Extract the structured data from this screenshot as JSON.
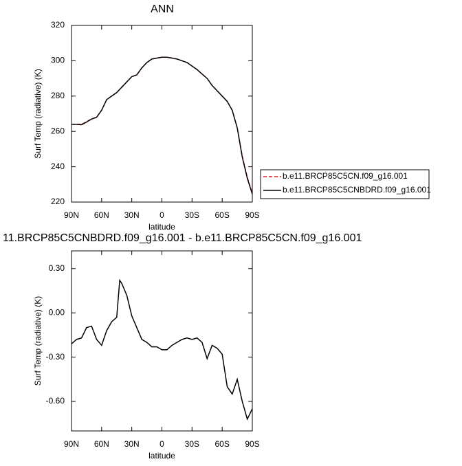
{
  "chart_data": [
    {
      "type": "line",
      "title": "ANN",
      "xlabel": "latitude",
      "ylabel": "Surf Temp (radiative) (K)",
      "x": [
        90,
        85,
        80,
        75,
        70,
        65,
        60,
        55,
        50,
        45,
        40,
        35,
        30,
        25,
        20,
        15,
        10,
        5,
        0,
        -5,
        -10,
        -15,
        -20,
        -25,
        -30,
        -35,
        -40,
        -45,
        -50,
        -55,
        -60,
        -65,
        -70,
        -75,
        -80,
        -85,
        -90
      ],
      "series": [
        {
          "name": "b.e11.BRCP85C5CN.f09_g16.001",
          "color": "#e41a1c",
          "line_style": "dashed",
          "values": [
            264,
            264,
            264,
            265.5,
            267,
            268,
            272,
            278,
            280,
            282,
            285,
            288,
            291,
            292,
            296,
            299,
            301,
            301.5,
            302,
            302,
            301.5,
            301,
            300,
            299,
            297,
            295,
            292.5,
            290,
            286,
            283,
            280,
            277,
            272,
            262,
            246,
            234,
            225
          ]
        },
        {
          "name": "b.e11.BRCP85C5CNBDRD.f09_g16.001",
          "color": "#000000",
          "line_style": "solid",
          "values": [
            264,
            264,
            263.8,
            265.3,
            267,
            268,
            272,
            278,
            280,
            282,
            285,
            288,
            291,
            292,
            296,
            299,
            301,
            301.5,
            302,
            302,
            301.5,
            301,
            300,
            299,
            297,
            295,
            292.5,
            290,
            286,
            283,
            280,
            277,
            272,
            262,
            245.5,
            233.5,
            224.5
          ]
        }
      ],
      "xlim": [
        90,
        -90
      ],
      "xticks": [
        {
          "value": 90,
          "label": "90N"
        },
        {
          "value": 60,
          "label": "60N"
        },
        {
          "value": 30,
          "label": "30N"
        },
        0,
        {
          "value": -30,
          "label": "30S"
        },
        {
          "value": -60,
          "label": "60S"
        },
        {
          "value": -90,
          "label": "90S"
        }
      ],
      "ylim": [
        220,
        320
      ],
      "yticks": [
        220,
        240,
        260,
        280,
        300,
        320
      ],
      "legend": "right"
    },
    {
      "type": "line",
      "title": "11.BRCP85C5CNBDRD.f09_g16.001 - b.e11.BRCP85C5CN.f09_g16.001",
      "xlabel": "latitude",
      "ylabel": "Surf Temp (radiative) (K)",
      "x": [
        90,
        85,
        80,
        75,
        70,
        65,
        60,
        55,
        50,
        45,
        42,
        40,
        35,
        30,
        25,
        20,
        15,
        10,
        5,
        0,
        -5,
        -10,
        -15,
        -20,
        -25,
        -30,
        -35,
        -40,
        -45,
        -50,
        -55,
        -60,
        -65,
        -70,
        -75,
        -80,
        -85,
        -90
      ],
      "series": [
        {
          "color": "#000000",
          "line_style": "solid",
          "values": [
            -0.21,
            -0.18,
            -0.17,
            -0.1,
            -0.09,
            -0.18,
            -0.22,
            -0.12,
            -0.06,
            -0.03,
            0.22,
            0.2,
            0.12,
            -0.02,
            -0.1,
            -0.18,
            -0.2,
            -0.23,
            -0.23,
            -0.25,
            -0.25,
            -0.22,
            -0.2,
            -0.18,
            -0.17,
            -0.18,
            -0.17,
            -0.2,
            -0.31,
            -0.22,
            -0.24,
            -0.28,
            -0.5,
            -0.55,
            -0.45,
            -0.6,
            -0.72,
            -0.65
          ]
        }
      ],
      "xlim": [
        90,
        -90
      ],
      "xticks": [
        {
          "value": 90,
          "label": "90N"
        },
        {
          "value": 60,
          "label": "60N"
        },
        {
          "value": 30,
          "label": "30N"
        },
        0,
        {
          "value": -30,
          "label": "30S"
        },
        {
          "value": -60,
          "label": "60S"
        },
        {
          "value": -90,
          "label": "90S"
        }
      ],
      "ylim": [
        -0.8,
        0.42
      ],
      "yticks": [
        {
          "value": -0.6,
          "label": "-0.60"
        },
        {
          "value": -0.3,
          "label": "-0.30"
        },
        {
          "value": 0,
          "label": "0.00"
        },
        {
          "value": 0.3,
          "label": "0.30"
        }
      ]
    }
  ]
}
